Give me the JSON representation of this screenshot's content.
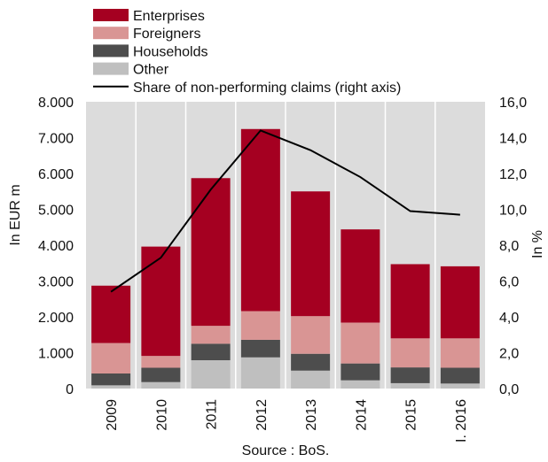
{
  "chart_data": {
    "type": "bar",
    "stacked": true,
    "categories": [
      "2009",
      "2010",
      "2011",
      "2012",
      "2013",
      "2014",
      "2015",
      "I. 2016"
    ],
    "series": [
      {
        "name": "Other",
        "color": "#bfbfbf",
        "values": [
          90,
          180,
          790,
          870,
          500,
          230,
          150,
          140
        ]
      },
      {
        "name": "Households",
        "color": "#4d4d4d",
        "values": [
          330,
          400,
          460,
          490,
          470,
          470,
          440,
          440
        ]
      },
      {
        "name": "Foreigners",
        "color": "#d99594",
        "values": [
          850,
          330,
          500,
          800,
          1050,
          1140,
          810,
          820
        ]
      },
      {
        "name": "Enterprises",
        "color": "#a50021",
        "values": [
          1600,
          3050,
          4120,
          5080,
          3480,
          2600,
          2070,
          2010
        ]
      }
    ],
    "line_series": {
      "name": "Share of non-performing claims (right axis)",
      "color": "#000000",
      "axis": "right",
      "values": [
        5.4,
        7.3,
        11.1,
        14.4,
        13.3,
        11.8,
        9.9,
        9.7
      ]
    },
    "legend_order": [
      "Enterprises",
      "Foreigners",
      "Households",
      "Other",
      "Share of non-performing claims (right axis)"
    ],
    "ylabel": "In EUR m",
    "y2label": "In %",
    "ylim": [
      0,
      8000
    ],
    "y2lim": [
      0,
      16
    ],
    "yticks": [
      "0",
      "1.000",
      "2.000",
      "3.000",
      "4.000",
      "5.000",
      "6.000",
      "7.000",
      "8.000"
    ],
    "y2ticks": [
      "0,0",
      "2,0",
      "4,0",
      "6,0",
      "8,0",
      "10,0",
      "12,0",
      "14,0",
      "16,0"
    ],
    "source": "Source : BoS.",
    "grid": "vertical",
    "legend_position": "top",
    "background": "#dcdcdc"
  }
}
